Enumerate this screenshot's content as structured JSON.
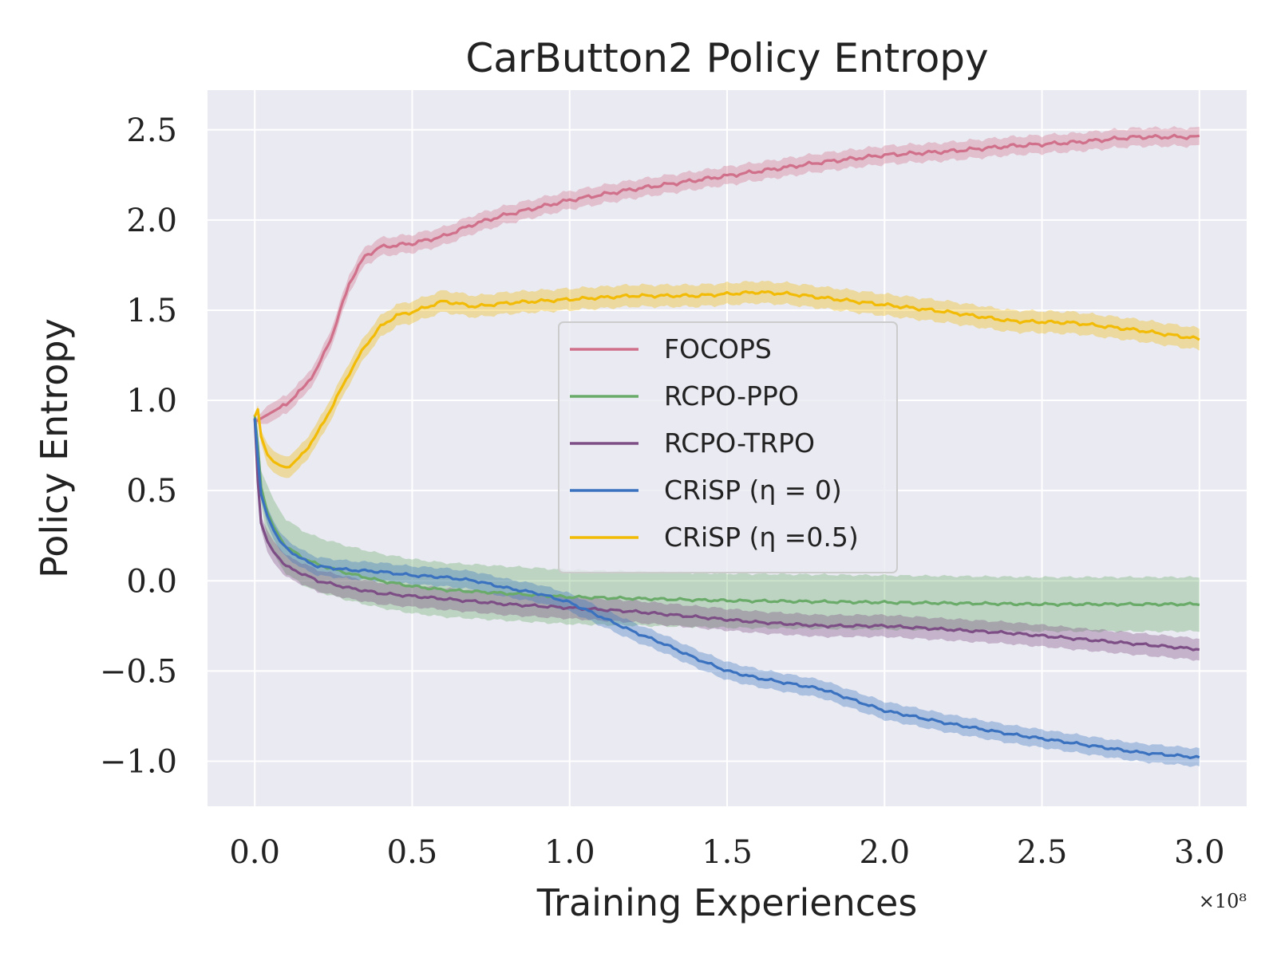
{
  "chart_data": {
    "type": "line",
    "title": "CarButton2 Policy Entropy",
    "xlabel": "Training Experiences",
    "ylabel": "Policy Entropy",
    "x_offset_label": "×10⁸",
    "xlim": [
      -0.15,
      3.15
    ],
    "ylim": [
      -1.25,
      2.72
    ],
    "x_ticks": [
      0.0,
      0.5,
      1.0,
      1.5,
      2.0,
      2.5,
      3.0
    ],
    "x_tick_labels": [
      "0.0",
      "0.5",
      "1.0",
      "1.5",
      "2.0",
      "2.5",
      "3.0"
    ],
    "y_ticks": [
      -1.0,
      -0.5,
      0.0,
      0.5,
      1.0,
      1.5,
      2.0,
      2.5
    ],
    "y_tick_labels": [
      "−1.0",
      "−0.5",
      "0.0",
      "0.5",
      "1.0",
      "1.5",
      "2.0",
      "2.5"
    ],
    "grid": true,
    "legend_position": "center",
    "series": [
      {
        "name": "FOCOPS",
        "color": "#d0708a",
        "x": [
          0.0,
          0.05,
          0.1,
          0.15,
          0.2,
          0.25,
          0.3,
          0.35,
          0.4,
          0.5,
          0.6,
          0.7,
          0.8,
          0.9,
          1.0,
          1.2,
          1.4,
          1.6,
          1.8,
          2.0,
          2.2,
          2.4,
          2.6,
          2.8,
          3.0
        ],
        "y": [
          0.88,
          0.93,
          0.98,
          1.06,
          1.18,
          1.38,
          1.65,
          1.8,
          1.85,
          1.87,
          1.91,
          1.98,
          2.03,
          2.07,
          2.11,
          2.17,
          2.22,
          2.27,
          2.32,
          2.36,
          2.38,
          2.41,
          2.43,
          2.46,
          2.46
        ],
        "band": 0.05
      },
      {
        "name": "RCPO-PPO",
        "color": "#6aab6a",
        "x": [
          0.0,
          0.01,
          0.02,
          0.04,
          0.06,
          0.08,
          0.1,
          0.15,
          0.2,
          0.3,
          0.4,
          0.5,
          0.6,
          0.8,
          1.0,
          1.5,
          2.0,
          2.5,
          3.0
        ],
        "y": [
          0.92,
          0.75,
          0.52,
          0.38,
          0.3,
          0.24,
          0.19,
          0.13,
          0.09,
          0.04,
          0.0,
          -0.03,
          -0.05,
          -0.07,
          -0.09,
          -0.11,
          -0.12,
          -0.13,
          -0.13
        ],
        "band": 0.15
      },
      {
        "name": "RCPO-TRPO",
        "color": "#7d4e85",
        "x": [
          0.0,
          0.01,
          0.02,
          0.04,
          0.06,
          0.08,
          0.1,
          0.15,
          0.2,
          0.3,
          0.4,
          0.6,
          0.8,
          1.0,
          1.2,
          1.4,
          1.6,
          1.8,
          2.0,
          2.2,
          2.4,
          2.6,
          2.8,
          3.0
        ],
        "y": [
          0.9,
          0.55,
          0.32,
          0.22,
          0.16,
          0.12,
          0.08,
          0.04,
          0.0,
          -0.04,
          -0.07,
          -0.1,
          -0.13,
          -0.15,
          -0.17,
          -0.2,
          -0.23,
          -0.25,
          -0.25,
          -0.27,
          -0.29,
          -0.32,
          -0.35,
          -0.38
        ],
        "band": 0.06
      },
      {
        "name": "CRiSP (η = 0)",
        "color": "#3a72c0",
        "x": [
          0.0,
          0.01,
          0.02,
          0.04,
          0.06,
          0.08,
          0.1,
          0.15,
          0.2,
          0.3,
          0.4,
          0.5,
          0.6,
          0.7,
          0.8,
          0.9,
          1.0,
          1.1,
          1.2,
          1.3,
          1.4,
          1.5,
          1.6,
          1.7,
          1.8,
          1.9,
          2.0,
          2.2,
          2.4,
          2.6,
          2.8,
          3.0
        ],
        "y": [
          0.9,
          0.68,
          0.48,
          0.36,
          0.28,
          0.22,
          0.18,
          0.12,
          0.08,
          0.06,
          0.05,
          0.03,
          0.02,
          0.0,
          -0.04,
          -0.07,
          -0.12,
          -0.2,
          -0.28,
          -0.35,
          -0.43,
          -0.5,
          -0.54,
          -0.57,
          -0.6,
          -0.66,
          -0.72,
          -0.79,
          -0.85,
          -0.9,
          -0.95,
          -0.98
        ],
        "band": 0.05
      },
      {
        "name": "CRiSP (η =0.5)",
        "color": "#f2bb05",
        "x": [
          0.0,
          0.01,
          0.02,
          0.04,
          0.06,
          0.08,
          0.1,
          0.13,
          0.16,
          0.2,
          0.25,
          0.3,
          0.35,
          0.4,
          0.45,
          0.5,
          0.6,
          0.7,
          0.8,
          1.0,
          1.2,
          1.4,
          1.6,
          1.7,
          1.8,
          2.0,
          2.2,
          2.4,
          2.6,
          2.8,
          3.0
        ],
        "y": [
          0.91,
          0.95,
          0.8,
          0.7,
          0.66,
          0.64,
          0.63,
          0.66,
          0.72,
          0.82,
          0.98,
          1.15,
          1.3,
          1.41,
          1.47,
          1.49,
          1.55,
          1.52,
          1.54,
          1.56,
          1.58,
          1.58,
          1.6,
          1.59,
          1.57,
          1.53,
          1.49,
          1.44,
          1.43,
          1.39,
          1.34
        ],
        "band": 0.06
      }
    ]
  }
}
